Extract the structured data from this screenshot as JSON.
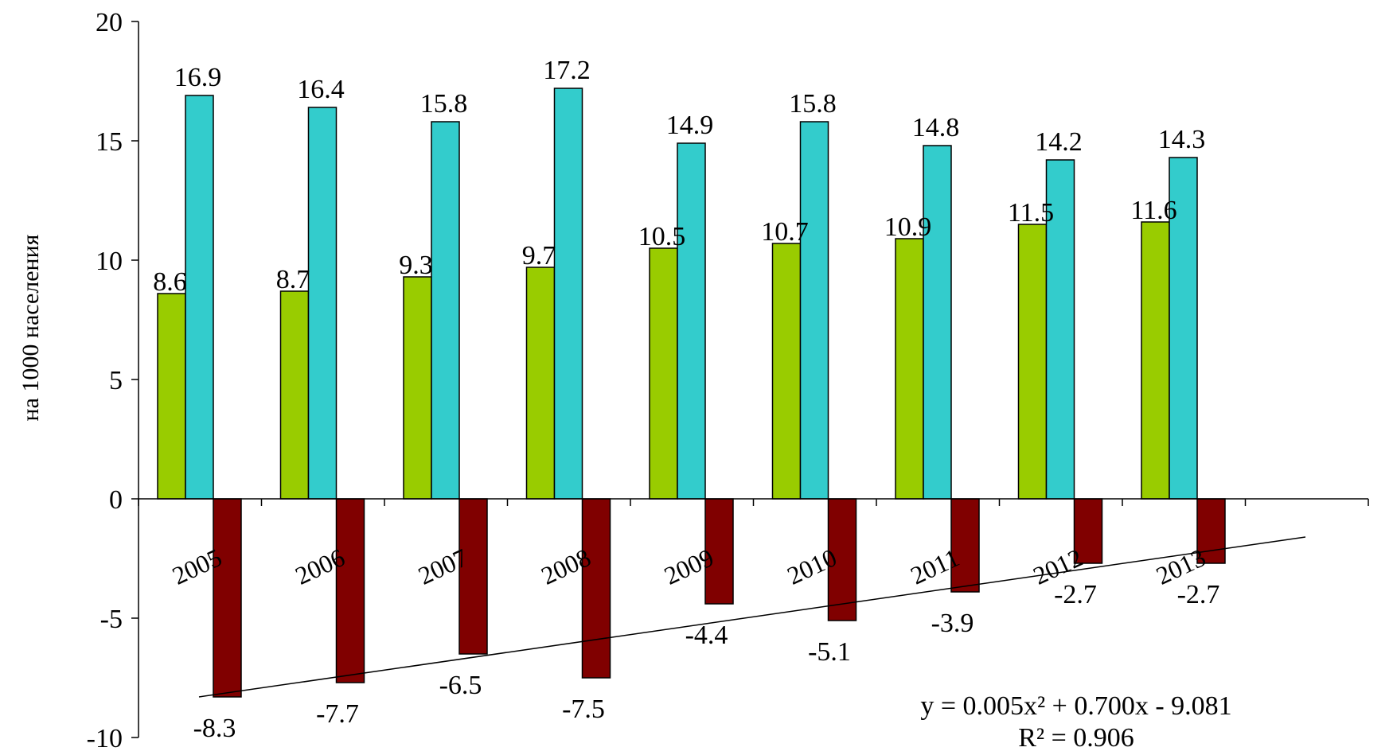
{
  "colors": {
    "series_1": "#99cc00",
    "series_2": "#33cccc",
    "series_3": "#800000",
    "axis": "#000000"
  },
  "chart_data": {
    "type": "bar",
    "categories": [
      "2005",
      "2006",
      "2007",
      "2008",
      "2009",
      "2010",
      "2011",
      "2012",
      "2013"
    ],
    "series": [
      {
        "values": [
          8.6,
          8.7,
          9.3,
          9.7,
          10.5,
          10.7,
          10.9,
          11.5,
          11.6
        ]
      },
      {
        "values": [
          16.9,
          16.4,
          15.8,
          17.2,
          14.9,
          15.8,
          14.8,
          14.2,
          14.3
        ]
      },
      {
        "values": [
          -8.3,
          -7.7,
          -6.5,
          -7.5,
          -4.4,
          -5.1,
          -3.9,
          -2.7,
          -2.7
        ]
      }
    ],
    "ylabel": "на 1000 населения",
    "ylim": [
      -10,
      20
    ],
    "yticks": [
      -10,
      -5,
      0,
      5,
      10,
      15,
      20
    ],
    "trendline": {
      "series_index": 2,
      "type": "polynomial",
      "equation": "y = 0.005x² + 0.700x - 9.081",
      "r_squared": "R² = 0.906",
      "start_value": -8.3,
      "end_value": -1.6
    },
    "legend": "none",
    "grid": false
  }
}
